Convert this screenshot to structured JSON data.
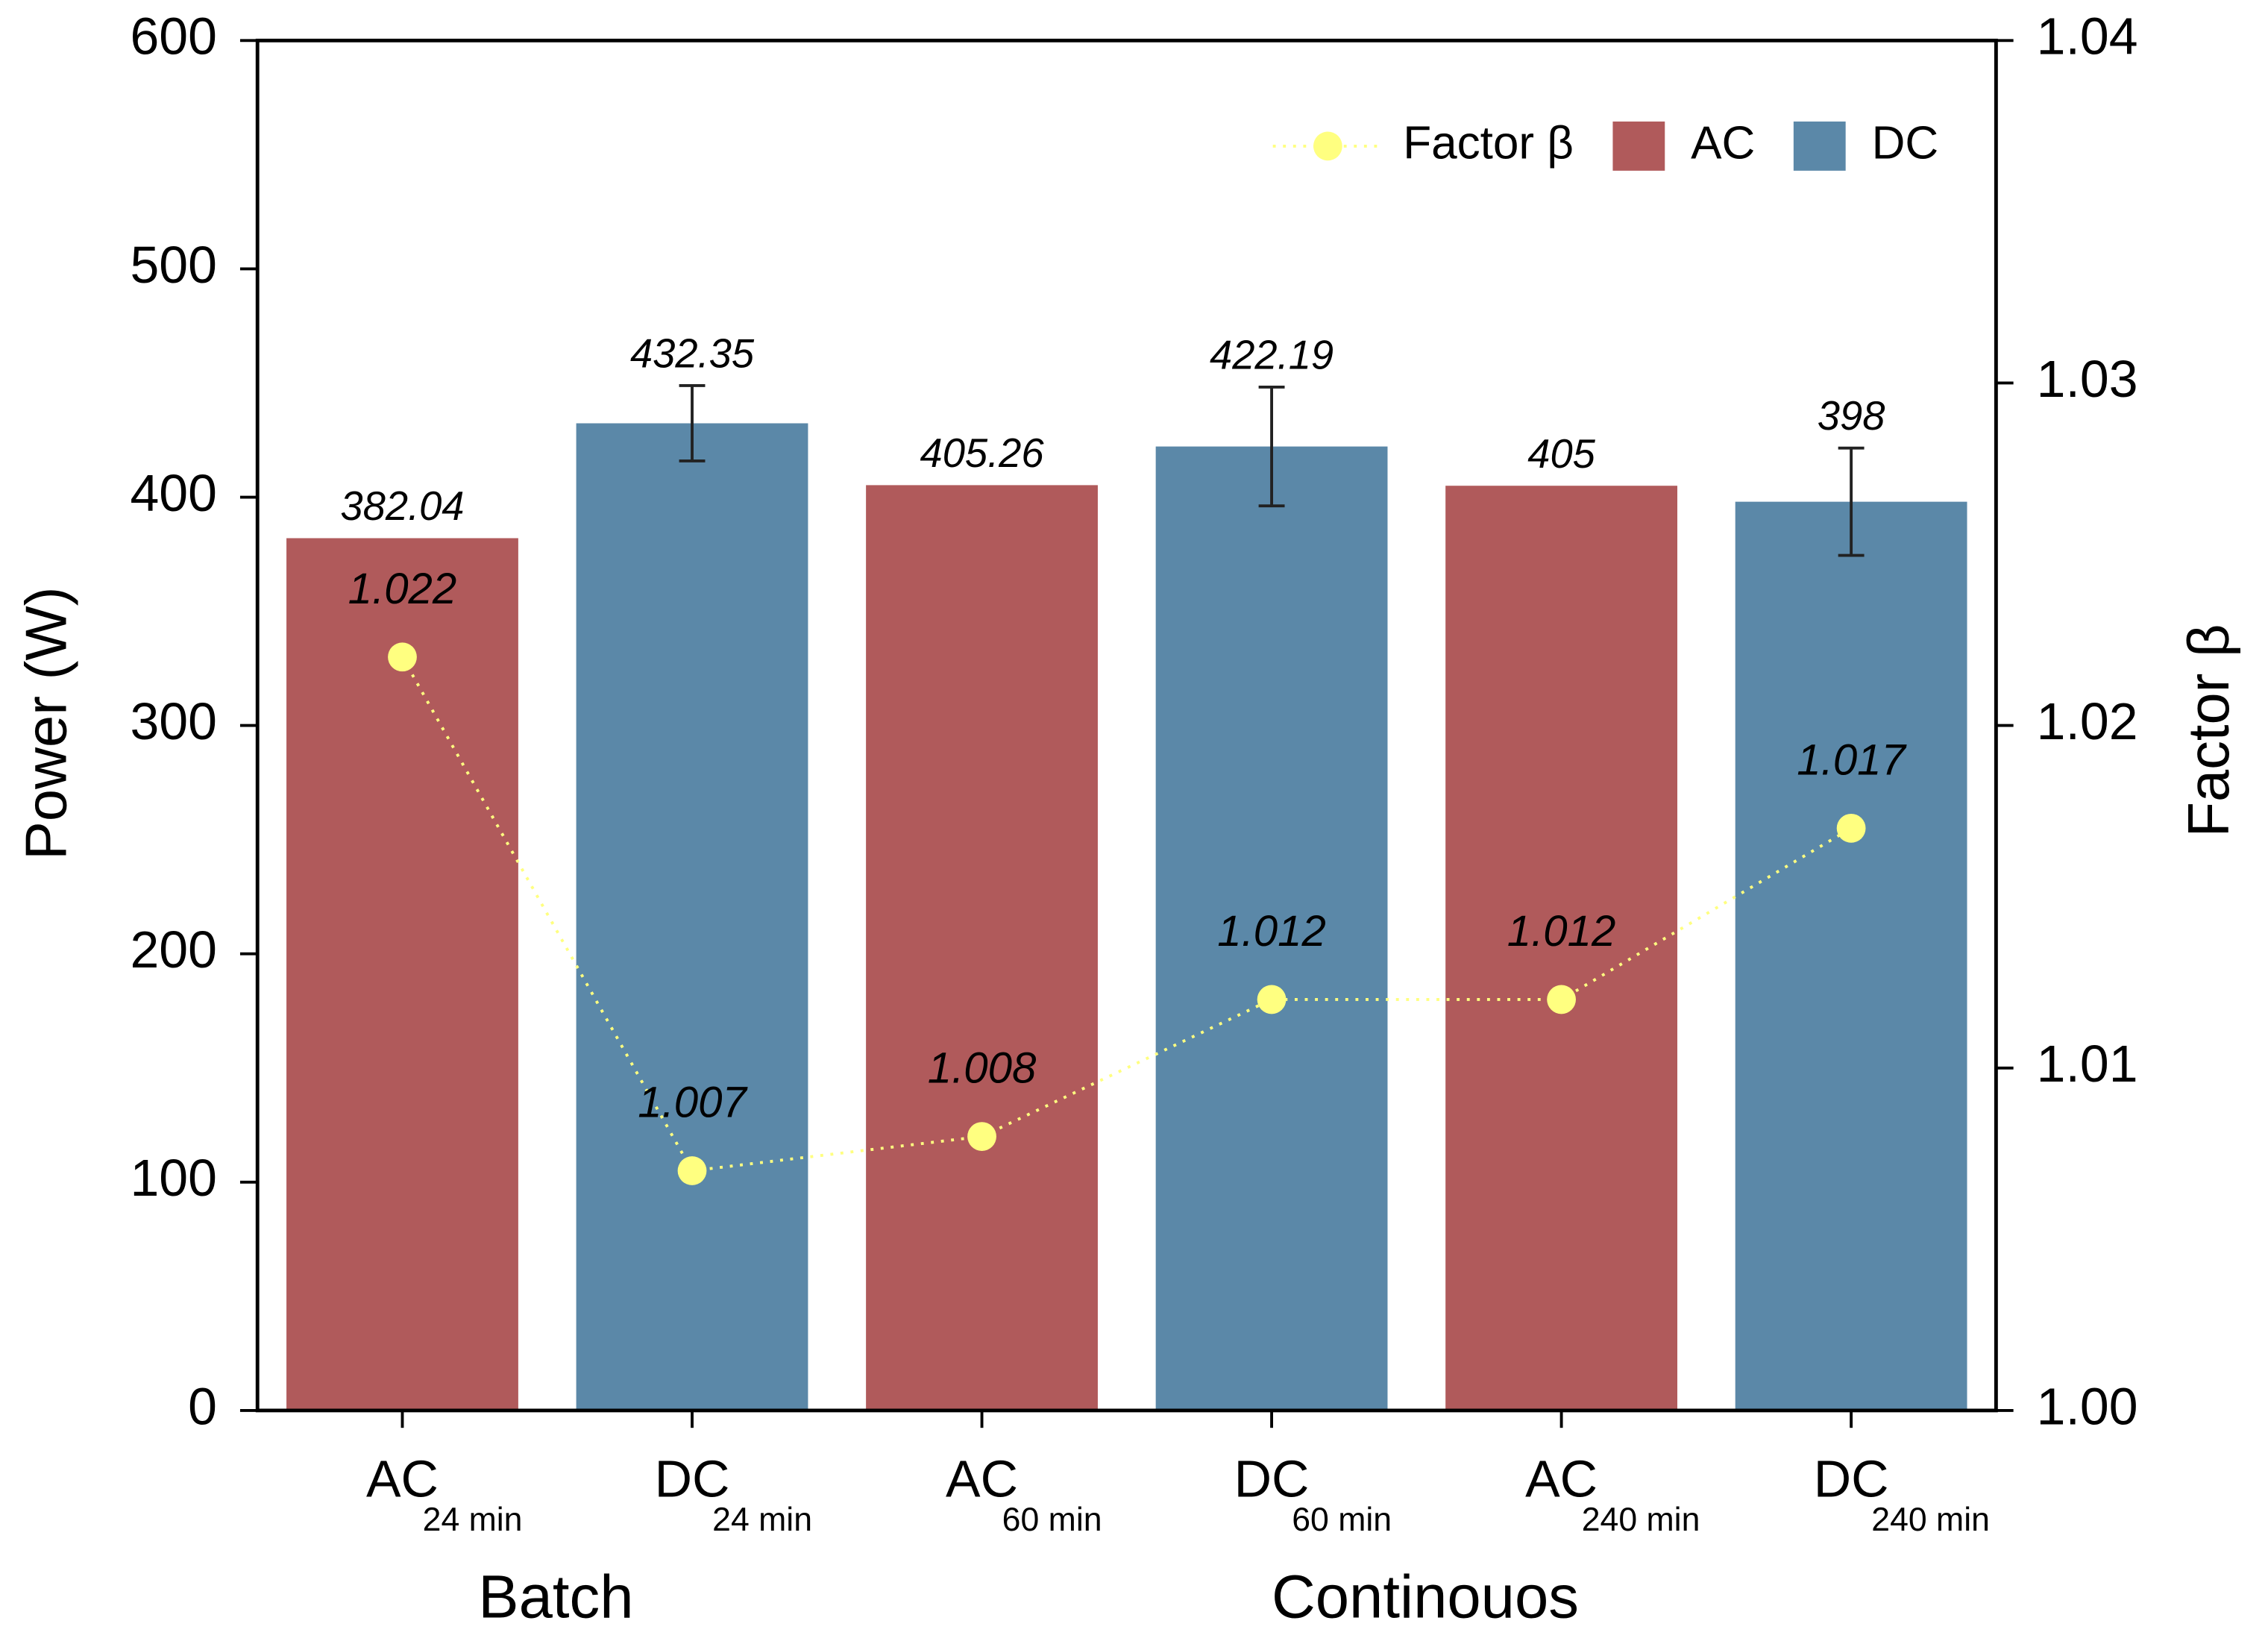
{
  "chart_data": {
    "type": "bar",
    "categories": [
      "AC",
      "DC",
      "AC",
      "DC",
      "AC",
      "DC"
    ],
    "category_subscripts": [
      "24 min",
      "24 min",
      "60 min",
      "60 min",
      "240 min",
      "240 min"
    ],
    "groups": [
      "Batch",
      "Continouos"
    ],
    "ylabel": "Power (W)",
    "y2label": "Factor β",
    "ylim": [
      0,
      600
    ],
    "yticks": [
      0,
      100,
      200,
      300,
      400,
      500,
      600
    ],
    "y2lim": [
      1.0,
      1.04
    ],
    "y2ticks": [
      {
        "value": 1.0,
        "label": "1.00"
      },
      {
        "value": 1.01,
        "label": "1.01"
      },
      {
        "value": 1.02,
        "label": "1.02"
      },
      {
        "value": 1.03,
        "label": "1.03"
      },
      {
        "value": 1.04,
        "label": "1.04"
      }
    ],
    "legend": "upper right",
    "series": [
      {
        "name": "AC",
        "type": "bar",
        "color": "#b05a5b",
        "values": [
          382.04,
          null,
          405.26,
          null,
          405,
          null
        ]
      },
      {
        "name": "DC",
        "type": "bar",
        "color": "#5b88a8",
        "values": [
          null,
          432.35,
          null,
          422.19,
          null,
          398
        ],
        "errors": [
          null,
          16.5,
          null,
          26,
          null,
          23.5
        ]
      },
      {
        "name": "Factor β",
        "type": "line",
        "axis": "y2",
        "color": "#ffff80",
        "values": [
          1.022,
          1.007,
          1.008,
          1.012,
          1.012,
          1.017
        ]
      }
    ]
  }
}
